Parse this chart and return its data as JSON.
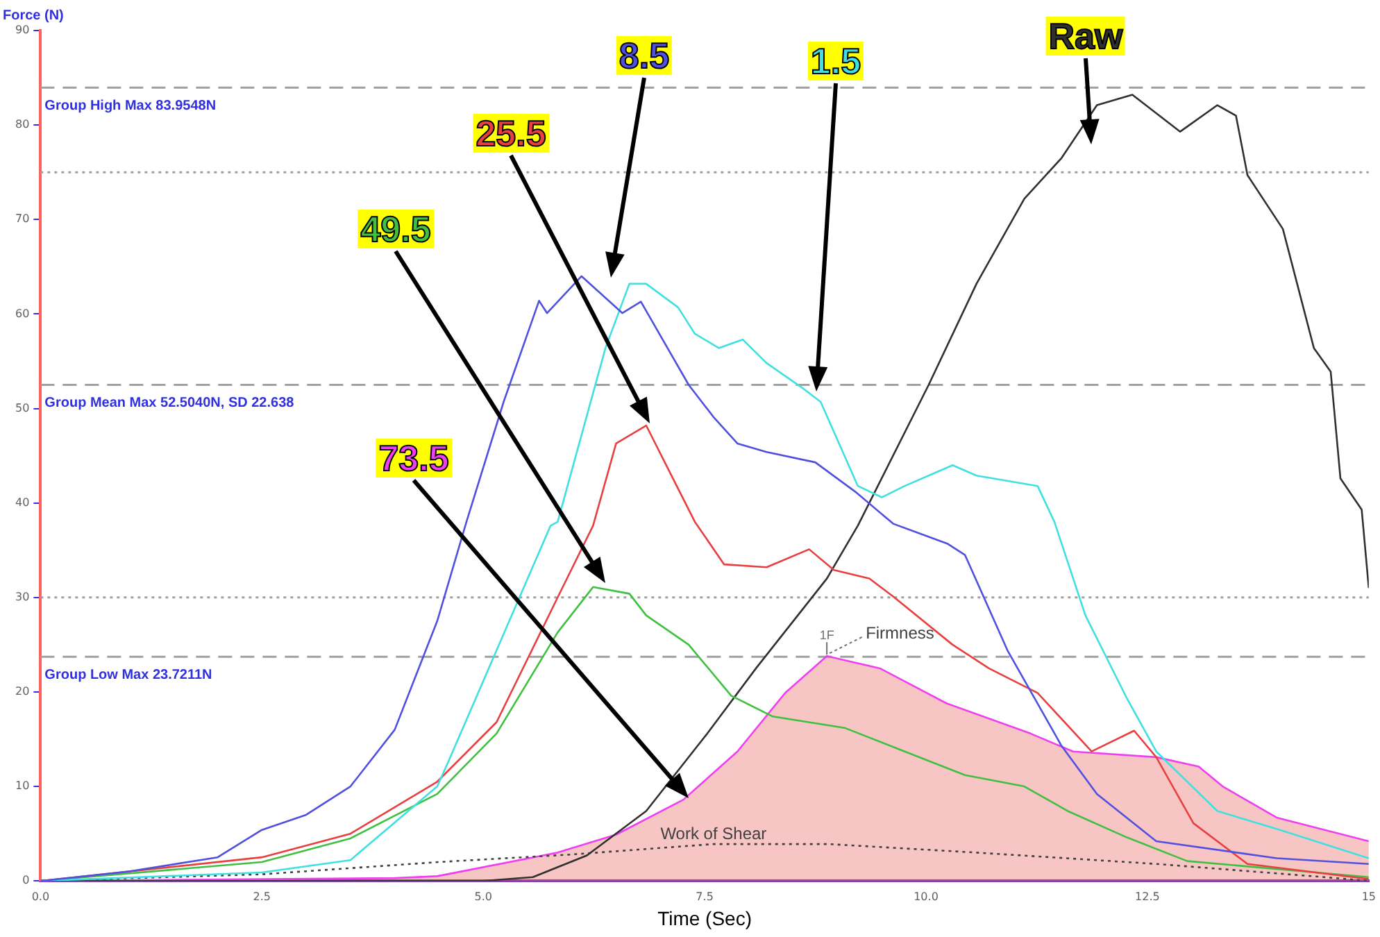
{
  "chart_data": {
    "type": "line",
    "xlabel": "Time (Sec)",
    "ylabel": "Force (N)",
    "xlim": [
      0,
      15
    ],
    "ylim": [
      0,
      90
    ],
    "xticks": [
      {
        "value": 0,
        "label": "0.0"
      },
      {
        "value": 2.5,
        "label": "2.5"
      },
      {
        "value": 5,
        "label": "5.0"
      },
      {
        "value": 7.5,
        "label": "7.5"
      },
      {
        "value": 10,
        "label": "10.0"
      },
      {
        "value": 12.5,
        "label": "12.5"
      },
      {
        "value": 15,
        "label": "15"
      }
    ],
    "yticks": [
      0,
      10,
      20,
      30,
      40,
      50,
      60,
      70,
      80,
      90
    ],
    "grid": false,
    "legend": false,
    "marker": "none",
    "series": [
      {
        "name": "8.5",
        "color": "#5050e0",
        "x": [
          0,
          1,
          2,
          2.5,
          3,
          3.5,
          4,
          4.48,
          4.81,
          5.23,
          5.63,
          5.72,
          6.11,
          6.57,
          6.78,
          7.32,
          7.6,
          7.87,
          8.2,
          8.75,
          9.2,
          9.63,
          10.24,
          10.44,
          10.92,
          11.53,
          11.93,
          12.6,
          13.96,
          15
        ],
        "values": [
          0,
          1,
          2.5,
          5.4,
          7,
          10,
          16,
          27.5,
          38,
          50.7,
          61.4,
          60.1,
          64,
          60.1,
          61.3,
          52.5,
          49.1,
          46.3,
          45.4,
          44.3,
          41.2,
          37.8,
          35.7,
          34.5,
          24.4,
          14.3,
          9.2,
          4.2,
          2.4,
          1.8
        ]
      },
      {
        "name": "1.5",
        "color": "#40e0e0",
        "x": [
          0,
          2.5,
          3.5,
          4.48,
          4.6,
          5.76,
          5.84,
          6.38,
          6.65,
          6.84,
          7.2,
          7.39,
          7.66,
          7.93,
          8.2,
          8.6,
          8.81,
          9.23,
          9.5,
          9.76,
          10.3,
          10.57,
          11.26,
          11.45,
          11.8,
          12.27,
          12.6,
          13.29,
          13.96,
          15
        ],
        "values": [
          0,
          0.9,
          2.2,
          10,
          12.5,
          37.6,
          38,
          56.4,
          63.2,
          63.2,
          60.7,
          57.9,
          56.4,
          57.3,
          54.8,
          52.2,
          50.7,
          41.8,
          40.6,
          41.8,
          44,
          42.9,
          41.8,
          38,
          28.1,
          19.3,
          13.7,
          7.4,
          5.5,
          2.4
        ]
      },
      {
        "name": "25.5",
        "color": "#e84040",
        "x": [
          0,
          2.5,
          3.5,
          4.48,
          5.15,
          5.84,
          6.24,
          6.5,
          6.84,
          7.05,
          7.39,
          7.72,
          8.2,
          8.68,
          8.96,
          9.36,
          9.63,
          10.3,
          10.71,
          11.26,
          11.87,
          12.35,
          12.6,
          13.02,
          13.63,
          15
        ],
        "values": [
          0,
          2.5,
          5,
          10.5,
          16.8,
          30,
          37.6,
          46.3,
          48.2,
          44.3,
          38,
          33.5,
          33.2,
          35.1,
          32.9,
          32,
          30.1,
          25,
          22.5,
          19.9,
          13.7,
          15.9,
          13.1,
          6.1,
          1.8,
          0.2
        ]
      },
      {
        "name": "49.5",
        "color": "#40c040",
        "x": [
          0,
          2.5,
          3.5,
          4.48,
          5.15,
          5.84,
          6.24,
          6.65,
          6.84,
          7.32,
          7.8,
          8.27,
          9.08,
          9.76,
          10.44,
          11.11,
          11.6,
          12.27,
          12.95,
          15
        ],
        "values": [
          0,
          2,
          4.5,
          9.2,
          15.6,
          26.3,
          31.1,
          30.4,
          28.1,
          25,
          19.6,
          17.4,
          16.2,
          13.7,
          11.2,
          10,
          7.4,
          4.6,
          2.1,
          0.4
        ]
      },
      {
        "name": "73.5",
        "type": "area",
        "color": "#ee40ee",
        "x": [
          0,
          4,
          4.48,
          5.84,
          6.5,
          7.26,
          7.87,
          8.41,
          8.88,
          9.48,
          10.23,
          11.18,
          11.66,
          12.6,
          13.08,
          13.35,
          13.96,
          15
        ],
        "values": [
          0,
          0.3,
          0.5,
          3,
          4.9,
          8.6,
          13.7,
          19.9,
          23.8,
          22.5,
          18.8,
          15.6,
          13.7,
          13.1,
          12.1,
          10,
          6.7,
          4.2
        ]
      },
      {
        "name": "Raw",
        "color": "#303030",
        "x": [
          0,
          5,
          5.56,
          6.17,
          6.84,
          7.53,
          8.08,
          8.88,
          9.23,
          10.03,
          10.57,
          11.11,
          11.53,
          11.93,
          12.33,
          12.87,
          13.29,
          13.5,
          13.63,
          14.03,
          14.38,
          14.57,
          14.68,
          14.92,
          15
        ],
        "values": [
          0,
          0,
          0.4,
          2.7,
          7.4,
          15.6,
          22.5,
          32,
          37.6,
          52.5,
          63.2,
          72.2,
          76.5,
          82.1,
          83.2,
          79.3,
          82.1,
          81,
          74.7,
          69,
          56.4,
          53.9,
          42.6,
          39.3,
          31
        ]
      },
      {
        "name": "Work of Shear",
        "color": "#404040",
        "line_style": "dotted",
        "x": [
          0,
          2.5,
          4.5,
          6,
          7.6,
          8.9,
          10.57,
          12.6,
          14.5,
          15
        ],
        "values": [
          0,
          0.7,
          2,
          2.8,
          3.9,
          3.9,
          3,
          1.8,
          0.4,
          0
        ]
      }
    ],
    "ref_lines": [
      {
        "axis": "y",
        "value": 83.9548,
        "label": "Group High Max 83.9548N",
        "color": "#a0a0a0",
        "line_style": "dashed"
      },
      {
        "axis": "y",
        "value": 75,
        "color": "#a0a0a0",
        "line_style": "dotted"
      },
      {
        "axis": "y",
        "value": 52.504,
        "label": "Group Mean Max 52.5040N, SD 22.638",
        "color": "#a0a0a0",
        "line_style": "dashed"
      },
      {
        "axis": "y",
        "value": 30,
        "color": "#a0a0a0",
        "line_style": "dotted"
      },
      {
        "axis": "y",
        "value": 23.7211,
        "label": "Group Low Max 23.7211N",
        "color": "#a0a0a0",
        "line_style": "dashed"
      }
    ],
    "annotations": [
      {
        "text": "1F",
        "x": 8.88,
        "y": 23.8
      },
      {
        "text": "Firmness",
        "x": 8.88,
        "y": 23.8
      }
    ]
  }
}
